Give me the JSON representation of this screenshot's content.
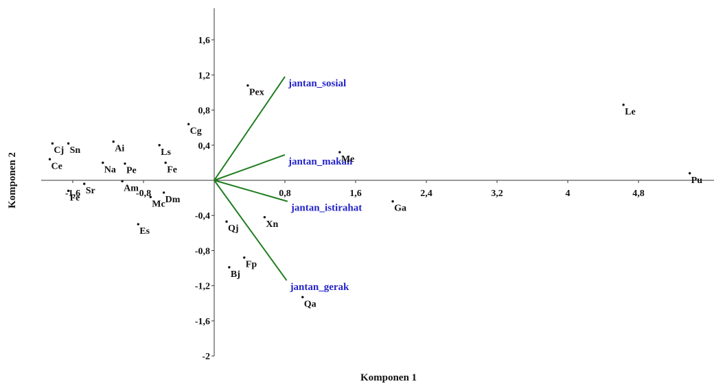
{
  "chart_data": {
    "type": "scatter",
    "title": "",
    "xlabel": "Komponen 1",
    "ylabel": "Komponen 2",
    "xlim": [
      -2.4,
      5.6
    ],
    "ylim": [
      -2.0,
      2.0
    ],
    "x_ticks": [
      -1.6,
      -0.8,
      0.8,
      1.6,
      2.4,
      3.2,
      4,
      4.8
    ],
    "x_tick_labels": [
      "-1,6",
      "-0,8",
      "0,8",
      "1,6",
      "2,4",
      "3,2",
      "4",
      "4,8"
    ],
    "y_ticks": [
      1.6,
      1.2,
      0.8,
      0.4,
      -0.4,
      -0.8,
      -1.2,
      -1.6,
      -2
    ],
    "y_tick_labels": [
      "1,6",
      "1,2",
      "0,8",
      "0,4",
      "-0,4",
      "-0,8",
      "-1,2",
      "-1,6",
      "-2"
    ],
    "points": [
      {
        "label": "Pex",
        "x": 0.38,
        "y": 1.08
      },
      {
        "label": "Le",
        "x": 4.63,
        "y": 0.86
      },
      {
        "label": "Pu",
        "x": 5.38,
        "y": 0.08
      },
      {
        "label": "Cg",
        "x": -0.29,
        "y": 0.64
      },
      {
        "label": "Cj",
        "x": -1.83,
        "y": 0.42
      },
      {
        "label": "Sn",
        "x": -1.65,
        "y": 0.42
      },
      {
        "label": "Ai",
        "x": -1.14,
        "y": 0.44
      },
      {
        "label": "Ls",
        "x": -0.62,
        "y": 0.4
      },
      {
        "label": "Ce",
        "x": -1.86,
        "y": 0.24
      },
      {
        "label": "Na",
        "x": -1.26,
        "y": 0.2
      },
      {
        "label": "Pe",
        "x": -1.01,
        "y": 0.19
      },
      {
        "label": "Fe",
        "x": -0.55,
        "y": 0.2
      },
      {
        "label": "Me",
        "x": 1.42,
        "y": 0.32
      },
      {
        "label": "Sr",
        "x": -1.47,
        "y": -0.04
      },
      {
        "label": "Fe",
        "x": -1.65,
        "y": -0.12
      },
      {
        "label": "Am",
        "x": -1.04,
        "y": -0.01
      },
      {
        "label": "Mc",
        "x": -0.72,
        "y": -0.19
      },
      {
        "label": "Dm",
        "x": -0.57,
        "y": -0.14
      },
      {
        "label": "Ga",
        "x": 2.02,
        "y": -0.24
      },
      {
        "label": "Xn",
        "x": 0.57,
        "y": -0.42
      },
      {
        "label": "Qj",
        "x": 0.14,
        "y": -0.47
      },
      {
        "label": "Es",
        "x": -0.86,
        "y": -0.5
      },
      {
        "label": "Bj",
        "x": 0.17,
        "y": -0.99
      },
      {
        "label": "Fp",
        "x": 0.34,
        "y": -0.88
      },
      {
        "label": "Qa",
        "x": 1.0,
        "y": -1.33
      }
    ],
    "vectors": [
      {
        "name": "jantan_sosial",
        "x": 0.8,
        "y": 1.18
      },
      {
        "name": "jantan_makan",
        "x": 0.8,
        "y": 0.29
      },
      {
        "name": "jantan_istirahat",
        "x": 0.83,
        "y": -0.24
      },
      {
        "name": "jantan_gerak",
        "x": 0.82,
        "y": -1.14
      }
    ],
    "vector_color": "#1e7d1e",
    "vector_label_color": "#2424c8",
    "point_color": "#111111",
    "grid": false,
    "legend": "none"
  }
}
